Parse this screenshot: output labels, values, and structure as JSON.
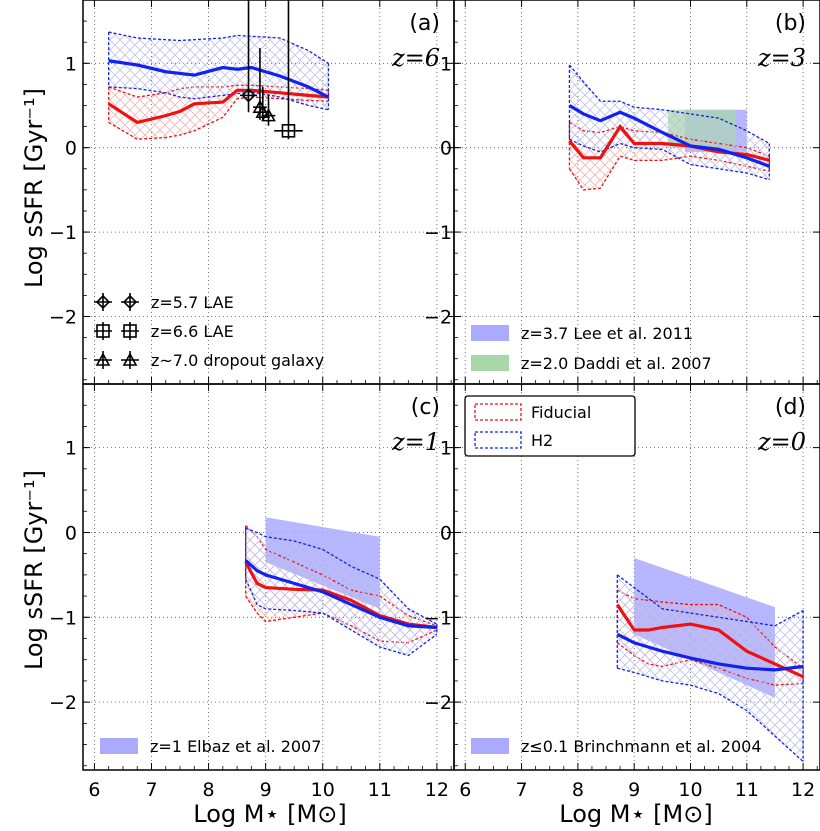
{
  "xlabel": "Log M⋆ [M⊙]",
  "ylabel": "Log sSFR [Gyr⁻¹]",
  "x_ticks": [
    "6",
    "7",
    "8",
    "9",
    "10",
    "11",
    "12"
  ],
  "y_ticks": [
    "1",
    "0",
    "−1",
    "−2"
  ],
  "colors": {
    "fiducial": "#ee1111",
    "h2": "#1122ee",
    "obs_blue": "#aaaaff",
    "obs_green": "#a8d8a8",
    "black": "#000000"
  },
  "main_legend": {
    "fiducial_label": "Fiducial",
    "h2_label": "H2"
  },
  "chart_data": [
    {
      "type": "line",
      "panel_label": "(a)",
      "redshift_label": "z=6",
      "xlim": [
        5.8,
        12.3
      ],
      "ylim": [
        -2.8,
        1.75
      ],
      "grid": true,
      "fiducial": {
        "x": [
          6.25,
          6.75,
          7.25,
          7.5,
          7.75,
          8.25,
          8.5,
          8.75,
          9.25,
          9.75,
          10.1
        ],
        "median": [
          0.52,
          0.3,
          0.38,
          0.43,
          0.52,
          0.54,
          0.68,
          0.68,
          0.65,
          0.62,
          0.6
        ],
        "p_upper": [
          0.72,
          0.6,
          0.65,
          0.7,
          0.72,
          0.72,
          0.74,
          0.74,
          0.72,
          0.7,
          0.68
        ],
        "p_lower": [
          0.3,
          0.1,
          0.12,
          0.15,
          0.2,
          0.36,
          0.58,
          0.6,
          0.58,
          0.56,
          0.55
        ]
      },
      "h2": {
        "x": [
          6.25,
          6.75,
          7.25,
          7.5,
          7.75,
          8.25,
          8.5,
          8.75,
          9.25,
          9.75,
          10.1
        ],
        "median": [
          1.03,
          0.98,
          0.9,
          0.88,
          0.86,
          0.95,
          0.93,
          0.95,
          0.85,
          0.72,
          0.6
        ],
        "p_upper": [
          1.37,
          1.3,
          1.28,
          1.27,
          1.28,
          1.3,
          1.33,
          1.32,
          1.3,
          1.15,
          1.0
        ],
        "p_lower": [
          0.72,
          0.7,
          0.65,
          0.6,
          0.58,
          0.62,
          0.64,
          0.66,
          0.6,
          0.5,
          0.45
        ]
      },
      "observations": [
        {
          "label": "z=5.7 LAE",
          "marker": "diamond",
          "points": [
            {
              "x": 8.7,
              "y": 0.62,
              "xerr": 0.15,
              "yerr_up": 1.2,
              "yerr_down": 0.2
            }
          ]
        },
        {
          "label": "z=6.6 LAE",
          "marker": "square",
          "points": [
            {
              "x": 9.4,
              "y": 0.2,
              "xerr": 0.25,
              "yerr_up": 1.6,
              "yerr_down": 0.1
            }
          ]
        },
        {
          "label": "z~7.0 dropout galaxy",
          "marker": "triangle",
          "points": [
            {
              "x": 8.9,
              "y": 0.48,
              "xerr": 0.12,
              "yerr_up": 0.7,
              "yerr_down": 0.15
            },
            {
              "x": 8.95,
              "y": 0.42,
              "xerr": 0.1,
              "yerr_up": 0.3,
              "yerr_down": 0.1
            },
            {
              "x": 9.05,
              "y": 0.38,
              "xerr": 0.12,
              "yerr_up": 0.25,
              "yerr_down": 0.12
            }
          ]
        }
      ]
    },
    {
      "type": "line",
      "panel_label": "(b)",
      "redshift_label": "z=3",
      "xlim": [
        5.8,
        12.3
      ],
      "ylim": [
        -2.8,
        1.75
      ],
      "grid": true,
      "fiducial": {
        "x": [
          7.85,
          8.1,
          8.4,
          8.75,
          9.0,
          9.5,
          10.0,
          10.5,
          11.0,
          11.4
        ],
        "median": [
          0.08,
          -0.12,
          -0.12,
          0.25,
          0.05,
          0.05,
          0.02,
          -0.05,
          -0.08,
          -0.15
        ],
        "p_upper": [
          0.3,
          0.2,
          0.18,
          0.25,
          0.2,
          0.18,
          0.1,
          0.05,
          0.0,
          -0.1
        ],
        "p_lower": [
          -0.25,
          -0.5,
          -0.48,
          -0.1,
          -0.15,
          -0.15,
          -0.1,
          -0.15,
          -0.22,
          -0.28
        ]
      },
      "h2": {
        "x": [
          7.85,
          8.1,
          8.4,
          8.75,
          9.0,
          9.5,
          10.0,
          10.5,
          11.0,
          11.4
        ],
        "median": [
          0.5,
          0.4,
          0.32,
          0.42,
          0.35,
          0.18,
          0.02,
          -0.02,
          -0.12,
          -0.22
        ],
        "p_upper": [
          0.98,
          0.78,
          0.55,
          0.55,
          0.48,
          0.45,
          0.4,
          0.35,
          0.2,
          0.05
        ],
        "p_lower": [
          0.1,
          0.02,
          -0.05,
          0.05,
          0.0,
          -0.02,
          -0.2,
          -0.25,
          -0.3,
          -0.38
        ]
      },
      "observations": [
        {
          "label": "z=3.7 Lee et al. 2011",
          "kind": "band",
          "color": "obs_blue",
          "x": [
            9.9,
            11.0
          ],
          "y_low": [
            -0.05,
            -0.05
          ],
          "y_high": [
            0.45,
            0.45
          ]
        },
        {
          "label": "z=2.0 Daddi et al. 2007",
          "kind": "band",
          "color": "obs_green",
          "x": [
            9.6,
            10.8
          ],
          "y_low": [
            0.0,
            0.0
          ],
          "y_high": [
            0.45,
            0.45
          ]
        }
      ]
    },
    {
      "type": "line",
      "panel_label": "(c)",
      "redshift_label": "z=1",
      "xlim": [
        5.8,
        12.3
      ],
      "ylim": [
        -2.8,
        1.75
      ],
      "grid": true,
      "fiducial": {
        "x": [
          8.65,
          8.85,
          9.0,
          9.5,
          10.0,
          10.5,
          11.0,
          11.5,
          12.0
        ],
        "median": [
          -0.35,
          -0.6,
          -0.65,
          -0.67,
          -0.68,
          -0.8,
          -0.98,
          -1.08,
          -1.12
        ],
        "p_upper": [
          0.08,
          -0.05,
          -0.2,
          -0.35,
          -0.5,
          -0.68,
          -0.75,
          -0.98,
          -1.1
        ],
        "p_lower": [
          -0.75,
          -0.95,
          -1.05,
          -1.0,
          -0.95,
          -1.1,
          -1.28,
          -1.3,
          -1.15
        ]
      },
      "h2": {
        "x": [
          8.65,
          8.85,
          9.0,
          9.5,
          10.0,
          10.5,
          11.0,
          11.5,
          12.0
        ],
        "median": [
          -0.33,
          -0.45,
          -0.5,
          -0.6,
          -0.7,
          -0.85,
          -1.0,
          -1.1,
          -1.12
        ],
        "p_upper": [
          0.05,
          0.0,
          -0.05,
          -0.1,
          -0.2,
          -0.4,
          -0.55,
          -0.9,
          -1.08
        ],
        "p_lower": [
          -0.55,
          -0.85,
          -0.9,
          -0.92,
          -0.95,
          -1.15,
          -1.35,
          -1.45,
          -1.2
        ]
      },
      "observations": [
        {
          "label": "z=1 Elbaz et al. 2007",
          "kind": "band",
          "color": "obs_blue",
          "x": [
            9.0,
            11.0
          ],
          "y_low": [
            -0.35,
            -0.9
          ],
          "y_high": [
            0.18,
            -0.05
          ]
        }
      ]
    },
    {
      "type": "line",
      "panel_label": "(d)",
      "redshift_label": "z=0",
      "xlim": [
        5.8,
        12.3
      ],
      "ylim": [
        -2.8,
        1.75
      ],
      "grid": true,
      "fiducial": {
        "x": [
          8.7,
          9.0,
          9.25,
          9.5,
          10.0,
          10.5,
          11.0,
          11.5,
          12.0
        ],
        "median": [
          -0.85,
          -1.15,
          -1.15,
          -1.12,
          -1.08,
          -1.15,
          -1.4,
          -1.55,
          -1.7
        ],
        "p_upper": [
          -0.68,
          -0.78,
          -0.8,
          -0.82,
          -0.85,
          -0.85,
          -1.0,
          -1.35,
          -1.6
        ],
        "p_lower": [
          -1.3,
          -1.45,
          -1.55,
          -1.58,
          -1.5,
          -1.6,
          -1.72,
          -1.8,
          -1.78
        ]
      },
      "h2": {
        "x": [
          8.7,
          9.0,
          9.5,
          10.0,
          10.5,
          11.0,
          11.5,
          12.0
        ],
        "median": [
          -1.2,
          -1.3,
          -1.4,
          -1.48,
          -1.55,
          -1.6,
          -1.62,
          -1.58
        ],
        "p_upper": [
          -0.5,
          -0.65,
          -0.9,
          -0.95,
          -1.0,
          -1.05,
          -1.1,
          -0.92
        ],
        "p_lower": [
          -1.6,
          -1.65,
          -1.75,
          -1.8,
          -1.9,
          -2.1,
          -2.4,
          -2.7
        ]
      },
      "observations": [
        {
          "label": "z≤0.1 Brinchmann et al. 2004",
          "kind": "band",
          "color": "obs_blue",
          "x": [
            9.0,
            11.5
          ],
          "y_low": [
            -1.2,
            -1.95
          ],
          "y_high": [
            -0.3,
            -0.88
          ]
        }
      ]
    }
  ]
}
